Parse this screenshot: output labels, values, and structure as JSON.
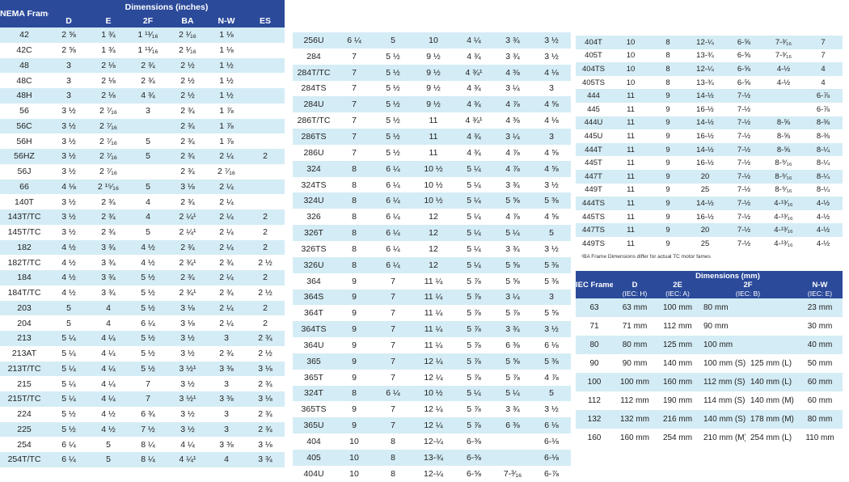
{
  "nema_table": {
    "frame_header": "NEMA Frame",
    "group_header": "Dimensions (inches)",
    "columns": [
      "D",
      "E",
      "2F",
      "BA",
      "N-W",
      "ES"
    ],
    "rows": [
      [
        "42",
        "2 ⅝",
        "1 ¾",
        "1 ¹¹⁄₁₆",
        "2 ¹⁄₁₆",
        "1 ⅛",
        ""
      ],
      [
        "42C",
        "2 ⅝",
        "1 ¾",
        "1 ¹¹⁄₁₆",
        "2 ¹⁄₁₆",
        "1 ⅛",
        ""
      ],
      [
        "48",
        "3",
        "2 ⅛",
        "2 ¾",
        "2 ½",
        "1 ½",
        ""
      ],
      [
        "48C",
        "3",
        "2 ⅛",
        "2 ¾",
        "2 ½",
        "1 ½",
        ""
      ],
      [
        "48H",
        "3",
        "2 ⅛",
        "4 ¾",
        "2 ½",
        "1 ½",
        ""
      ],
      [
        "56",
        "3 ½",
        "2 ⁷⁄₁₆",
        "3",
        "2 ¾",
        "1 ⅞",
        ""
      ],
      [
        "56C",
        "3 ½",
        "2 ⁷⁄₁₆",
        "",
        "2 ¾",
        "1 ⅞",
        ""
      ],
      [
        "56H",
        "3 ½",
        "2 ⁷⁄₁₆",
        "5",
        "2 ¾",
        "1 ⅞",
        ""
      ],
      [
        "56HZ",
        "3 ½",
        "2 ⁷⁄₁₆",
        "5",
        "2 ¾",
        "2 ¼",
        "2"
      ],
      [
        "56J",
        "3 ½",
        "2 ⁷⁄₁₆",
        "",
        "2 ¾",
        "2 ⁷⁄₁₆",
        ""
      ],
      [
        "66",
        "4 ⅛",
        "2 ¹⁵⁄₁₆",
        "5",
        "3 ⅛",
        "2 ¼",
        ""
      ],
      [
        "140T",
        "3 ½",
        "2 ¾",
        "4",
        "2 ¾",
        "2 ¼",
        ""
      ],
      [
        "143T/TC",
        "3 ½",
        "2 ¾",
        "4",
        "2 ¼¹",
        "2 ¼",
        "2"
      ],
      [
        "145T/TC",
        "3 ½",
        "2 ¾",
        "5",
        "2 ¼¹",
        "2 ¼",
        "2"
      ],
      [
        "182",
        "4 ½",
        "3 ¾",
        "4 ½",
        "2 ¾",
        "2 ¼",
        "2"
      ],
      [
        "182T/TC",
        "4 ½",
        "3 ¾",
        "4 ½",
        "2 ¾¹",
        "2 ¾",
        "2 ½"
      ],
      [
        "184",
        "4 ½",
        "3 ¾",
        "5 ½",
        "2 ¾",
        "2 ¼",
        "2"
      ],
      [
        "184T/TC",
        "4 ½",
        "3 ¾",
        "5 ½",
        "2 ¾¹",
        "2 ¾",
        "2 ½"
      ],
      [
        "203",
        "5",
        "4",
        "5 ½",
        "3 ⅛",
        "2 ¼",
        "2"
      ],
      [
        "204",
        "5",
        "4",
        "6 ¼",
        "3 ⅛",
        "2 ¼",
        "2"
      ],
      [
        "213",
        "5 ¼",
        "4 ¼",
        "5 ½",
        "3 ½",
        "3",
        "2 ¾"
      ],
      [
        "213AT",
        "5 ¼",
        "4 ¼",
        "5 ½",
        "3 ½",
        "2 ¾",
        "2 ½"
      ],
      [
        "213T/TC",
        "5 ¼",
        "4 ¼",
        "5 ½",
        "3 ½¹",
        "3 ⅜",
        "3 ⅛"
      ],
      [
        "215",
        "5 ¼",
        "4 ¼",
        "7",
        "3 ½",
        "3",
        "2 ¾"
      ],
      [
        "215T/TC",
        "5 ¼",
        "4 ¼",
        "7",
        "3 ½¹",
        "3 ⅜",
        "3 ⅛"
      ],
      [
        "224",
        "5 ½",
        "4 ½",
        "6 ¾",
        "3 ½",
        "3",
        "2 ¾"
      ],
      [
        "225",
        "5 ½",
        "4 ½",
        "7 ½",
        "3 ½",
        "3",
        "2 ¾"
      ],
      [
        "254",
        "6 ¼",
        "5",
        "8 ¼",
        "4 ¼",
        "3 ⅜",
        "3 ⅛"
      ],
      [
        "254T/TC",
        "6 ¼",
        "5",
        "8 ¼",
        "4 ¼¹",
        "4",
        "3 ¾"
      ]
    ]
  },
  "nema_table_cont": {
    "rows": [
      [
        "256U",
        "6 ¼",
        "5",
        "10",
        "4 ¼",
        "3 ¾",
        "3 ½"
      ],
      [
        "284",
        "7",
        "5 ½",
        "9 ½",
        "4 ¾",
        "3 ¾",
        "3 ½"
      ],
      [
        "284T/TC",
        "7",
        "5 ½",
        "9 ½",
        "4 ¾¹",
        "4 ⅜",
        "4 ⅛"
      ],
      [
        "284TS",
        "7",
        "5 ½",
        "9 ½",
        "4 ¾",
        "3 ¼",
        "3"
      ],
      [
        "284U",
        "7",
        "5 ½",
        "9 ½",
        "4 ¾",
        "4 ⅞",
        "4 ⅝"
      ],
      [
        "286T/TC",
        "7",
        "5 ½",
        "11",
        "4 ¾¹",
        "4 ⅜",
        "4 ⅛"
      ],
      [
        "286TS",
        "7",
        "5 ½",
        "11",
        "4 ¾",
        "3 ¼",
        "3"
      ],
      [
        "286U",
        "7",
        "5 ½",
        "11",
        "4 ¾",
        "4 ⅞",
        "4 ⅝"
      ],
      [
        "324",
        "8",
        "6 ¼",
        "10 ½",
        "5 ¼",
        "4 ⅞",
        "4 ⅝"
      ],
      [
        "324TS",
        "8",
        "6 ¼",
        "10 ½",
        "5 ¼",
        "3 ¾",
        "3 ½"
      ],
      [
        "324U",
        "8",
        "6 ¼",
        "10 ½",
        "5 ¼",
        "5 ⅝",
        "5 ⅜"
      ],
      [
        "326",
        "8",
        "6 ¼",
        "12",
        "5 ¼",
        "4 ⅞",
        "4 ⅝"
      ],
      [
        "326T",
        "8",
        "6 ¼",
        "12",
        "5 ¼",
        "5 ¼",
        "5"
      ],
      [
        "326TS",
        "8",
        "6 ¼",
        "12",
        "5 ¼",
        "3 ¾",
        "3 ½"
      ],
      [
        "326U",
        "8",
        "6 ¼",
        "12",
        "5 ¼",
        "5 ⅝",
        "5 ⅜"
      ],
      [
        "364",
        "9",
        "7",
        "11 ¼",
        "5 ⅞",
        "5 ⅝",
        "5 ⅜"
      ],
      [
        "364S",
        "9",
        "7",
        "11 ¼",
        "5 ⅞",
        "3 ¼",
        "3"
      ],
      [
        "364T",
        "9",
        "7",
        "11 ¼",
        "5 ⅞",
        "5 ⅞",
        "5 ⅝"
      ],
      [
        "364TS",
        "9",
        "7",
        "11 ¼",
        "5 ⅞",
        "3 ¾",
        "3 ½"
      ],
      [
        "364U",
        "9",
        "7",
        "11 ¼",
        "5 ⅞",
        "6 ⅜",
        "6 ⅛"
      ],
      [
        "365",
        "9",
        "7",
        "12 ¼",
        "5 ⅞",
        "5 ⅝",
        "5 ⅜"
      ],
      [
        "365T",
        "9",
        "7",
        "12 ¼",
        "5 ⅞",
        "5 ⅞",
        "4 ⅞"
      ],
      [
        "324T",
        "8",
        "6 ¼",
        "10 ½",
        "5 ¼",
        "5 ¼",
        "5"
      ],
      [
        "365TS",
        "9",
        "7",
        "12 ¼",
        "5 ⅞",
        "3 ¾",
        "3 ½"
      ],
      [
        "365U",
        "9",
        "7",
        "12 ¼",
        "5 ⅞",
        "6 ⅜",
        "6 ⅛"
      ],
      [
        "404",
        "10",
        "8",
        "12-¼",
        "6-⅜",
        "",
        "6-⅛"
      ],
      [
        "405",
        "10",
        "8",
        "13-¾",
        "6-⅜",
        "",
        "6-⅛"
      ],
      [
        "404U",
        "10",
        "8",
        "12-¼",
        "6-⅝",
        "7-³⁄₁₆",
        "6-⅞"
      ]
    ]
  },
  "nema_table_cont2": {
    "rows": [
      [
        "404T",
        "10",
        "8",
        "12-¼",
        "6-⅝",
        "7-³⁄₁₆",
        "7"
      ],
      [
        "405T",
        "10",
        "8",
        "13-¾",
        "6-⅝",
        "7-³⁄₁₆",
        "7"
      ],
      [
        "404TS",
        "10",
        "8",
        "12-¼",
        "6-⅝",
        "4-½",
        "4"
      ],
      [
        "405TS",
        "10",
        "8",
        "13-¾",
        "6-⅝",
        "4-½",
        "4"
      ],
      [
        "444",
        "11",
        "9",
        "14-½",
        "7-½",
        "",
        "6-⅞"
      ],
      [
        "445",
        "11",
        "9",
        "16-½",
        "7-½",
        "",
        "6-⅞"
      ],
      [
        "444U",
        "11",
        "9",
        "14-½",
        "7-½",
        "8-⅝",
        "8-⅜"
      ],
      [
        "445U",
        "11",
        "9",
        "16-½",
        "7-½",
        "8-⅝",
        "8-⅜"
      ],
      [
        "444T",
        "11",
        "9",
        "14-½",
        "7-½",
        "8-⅝",
        "8-¼"
      ],
      [
        "445T",
        "11",
        "9",
        "16-½",
        "7-½",
        "8-⁹⁄₁₆",
        "8-¼"
      ],
      [
        "447T",
        "11",
        "9",
        "20",
        "7-½",
        "8-⁹⁄₁₆",
        "8-¼"
      ],
      [
        "449T",
        "11",
        "9",
        "25",
        "7-½",
        "8-⁹⁄₁₆",
        "8-¼"
      ],
      [
        "444TS",
        "11",
        "9",
        "14-½",
        "7-½",
        "4-¹³⁄₁₆",
        "4-½"
      ],
      [
        "445TS",
        "11",
        "9",
        "16-½",
        "7-½",
        "4-¹³⁄₁₆",
        "4-½"
      ],
      [
        "447TS",
        "11",
        "9",
        "20",
        "7-½",
        "4-¹³⁄₁₆",
        "4-½"
      ],
      [
        "449TS",
        "11",
        "9",
        "25",
        "7-½",
        "4-¹³⁄₁₆",
        "4-½"
      ]
    ],
    "footnote": "¹BA Frame Dimensions differ for actual TC motor fames"
  },
  "iec_table": {
    "frame_header": "IEC Frame",
    "group_header": "Dimensions (mm)",
    "columns": [
      {
        "name": "D",
        "sub": "(IEC: H)"
      },
      {
        "name": "2E",
        "sub": "(IEC: A)"
      },
      {
        "name": "2F",
        "sub": "(IEC: B)"
      },
      {
        "name": "N-W",
        "sub": "(IEC: E)"
      }
    ],
    "rows": [
      [
        "63",
        "63 mm",
        "100 mm",
        "80 mm",
        "",
        "23 mm"
      ],
      [
        "71",
        "71 mm",
        "112 mm",
        "90 mm",
        "",
        "30 mm"
      ],
      [
        "80",
        "80 mm",
        "125 mm",
        "100 mm",
        "",
        "40 mm"
      ],
      [
        "90",
        "90 mm",
        "140 mm",
        "100 mm (S)",
        "125 mm (L)",
        "50 mm"
      ],
      [
        "100",
        "100 mm",
        "160 mm",
        "112 mm (S)",
        "140 mm (L)",
        "60 mm"
      ],
      [
        "112",
        "112 mm",
        "190 mm",
        "114 mm (S)",
        "140 mm (M)",
        "60 mm"
      ],
      [
        "132",
        "132 mm",
        "216 mm",
        "140 mm (S)",
        "178 mm (M)",
        "80 mm"
      ],
      [
        "160",
        "160 mm",
        "254 mm",
        "210 mm (M)",
        "254 mm (L)",
        "110 mm"
      ]
    ]
  },
  "colors": {
    "header": "#2b4a9a",
    "row_alt": "#d4ecf5",
    "row": "#ffffff"
  }
}
